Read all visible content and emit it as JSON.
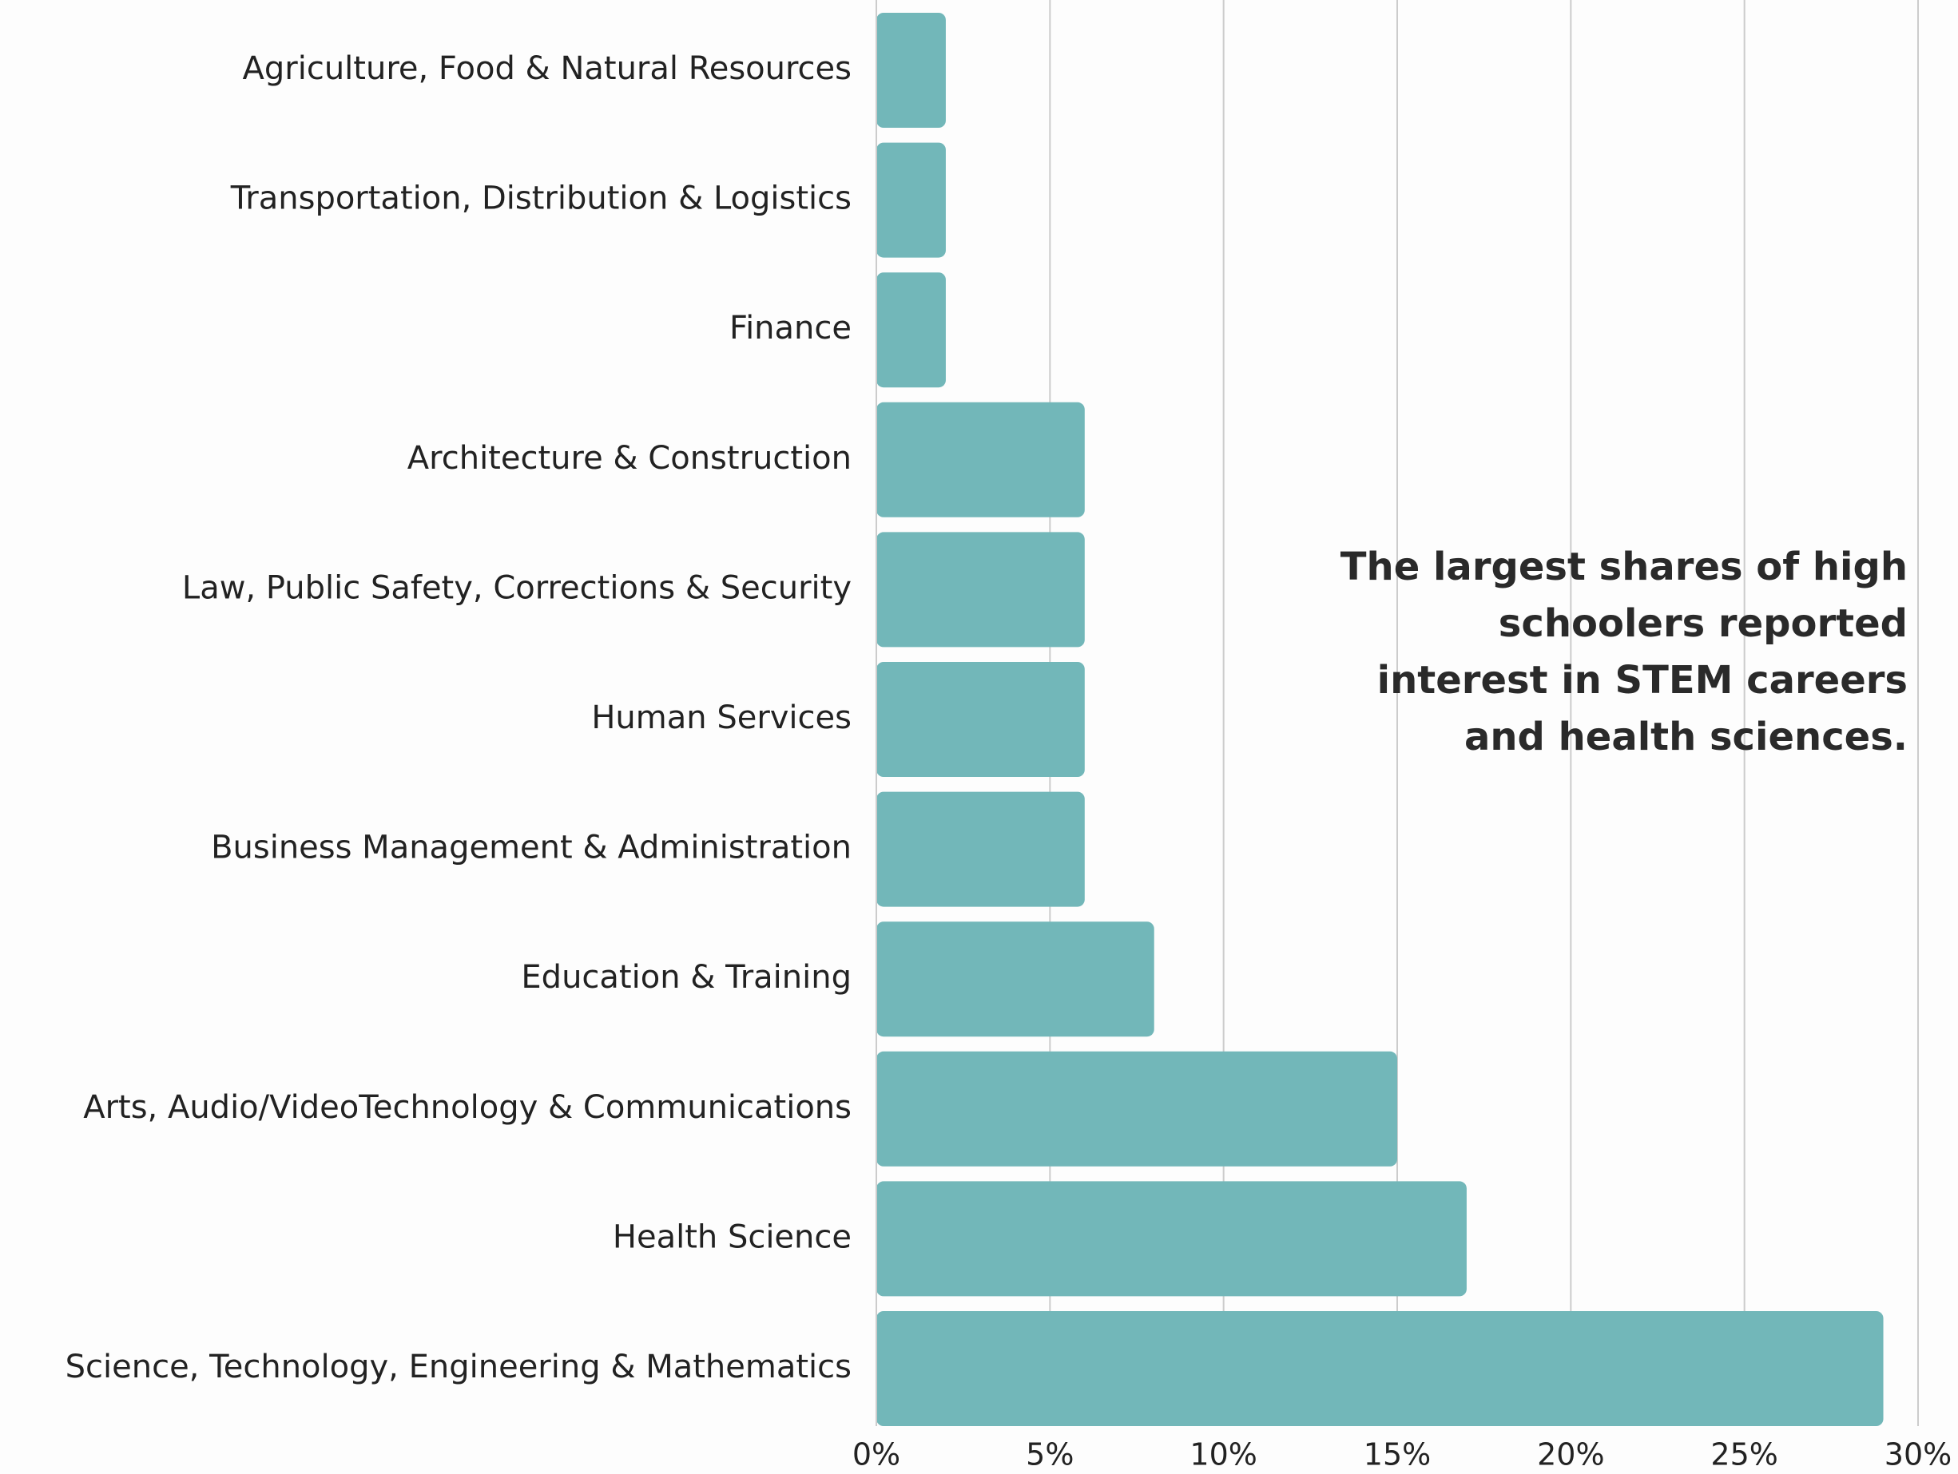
{
  "chart_data": {
    "type": "bar",
    "orientation": "horizontal",
    "categories": [
      "Agriculture, Food & Natural Resources",
      "Transportation, Distribution & Logistics",
      "Finance",
      "Architecture & Construction",
      "Law, Public Safety, Corrections & Security",
      "Human Services",
      "Business Management & Administration",
      "Education & Training",
      "Arts, Audio/VideoTechnology & Communications",
      "Health Science",
      "Science, Technology, Engineering & Mathematics"
    ],
    "values": [
      2,
      2,
      2,
      6,
      6,
      6,
      6,
      8,
      15,
      17,
      29
    ],
    "color": "#72b7b9",
    "xlim": [
      0,
      30
    ],
    "xticks": [
      {
        "value": 0,
        "label": "0%"
      },
      {
        "value": 5,
        "label": "5%"
      },
      {
        "value": 10,
        "label": "10%"
      },
      {
        "value": 15,
        "label": "15%"
      },
      {
        "value": 20,
        "label": "20%"
      },
      {
        "value": 25,
        "label": "25%"
      },
      {
        "value": 30,
        "label": "30%"
      }
    ],
    "grid": true,
    "annotation": [
      "The largest shares of high",
      "schoolers reported",
      "interest in STEM careers",
      "and health sciences."
    ]
  }
}
